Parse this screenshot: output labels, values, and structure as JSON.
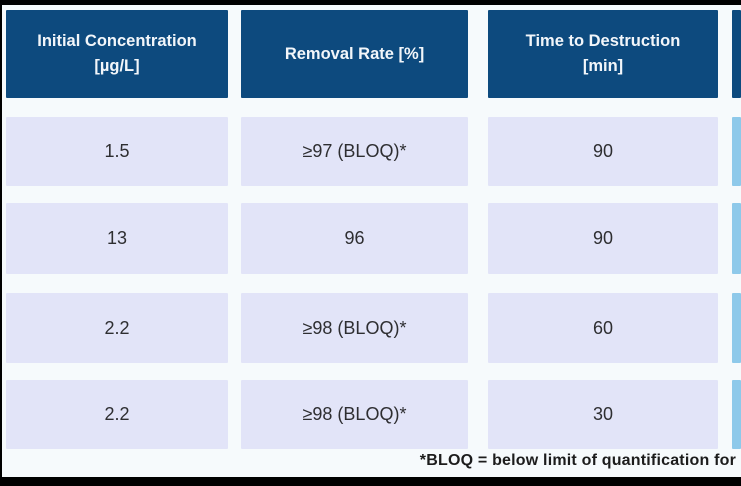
{
  "colors": {
    "page-bg": "#f6fafc",
    "frame-bar": "#000000",
    "header-bg": "#0d4a7e",
    "header-text": "#f2f6fa",
    "row-bg": "#e2e4f8",
    "accent-col-bg": "#8ec9ea",
    "cell-text": "#2e2e31",
    "footnote-text": "#1c1c1c"
  },
  "table": {
    "headers": [
      {
        "label": "Initial Concentration\n[µg/L]"
      },
      {
        "label": "Removal Rate [%]"
      },
      {
        "label": "Time to Destruction\n[min]"
      },
      {
        "label": ""
      }
    ],
    "rows": [
      {
        "cells": [
          "1.5",
          "≥97 (BLOQ)*",
          "90"
        ]
      },
      {
        "cells": [
          "13",
          "96",
          "90"
        ]
      },
      {
        "cells": [
          "2.2",
          "≥98 (BLOQ)*",
          "60"
        ]
      },
      {
        "cells": [
          "2.2",
          "≥98 (BLOQ)*",
          "30"
        ]
      }
    ]
  },
  "footnote": "*BLOQ = below limit of quantification for"
}
